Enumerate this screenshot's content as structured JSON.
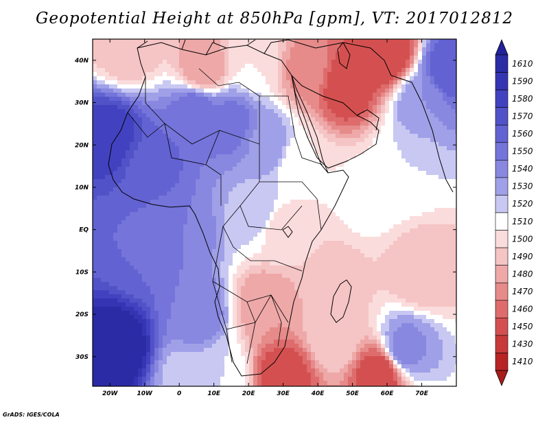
{
  "title": "Geopotential Height at 850hPa [gpm], VT: 2017012812",
  "footer": "GrADS: IGES/COLA",
  "map": {
    "lon_range": [
      -25,
      80
    ],
    "lat_range": [
      -37,
      45
    ],
    "lat_ticks": [
      {
        "lat": 40,
        "label": "40N"
      },
      {
        "lat": 30,
        "label": "30N"
      },
      {
        "lat": 20,
        "label": "20N"
      },
      {
        "lat": 10,
        "label": "10N"
      },
      {
        "lat": 0,
        "label": "EQ"
      },
      {
        "lat": -10,
        "label": "10S"
      },
      {
        "lat": -20,
        "label": "20S"
      },
      {
        "lat": -30,
        "label": "30S"
      }
    ],
    "lon_ticks": [
      {
        "lon": -20,
        "label": "20W"
      },
      {
        "lon": -10,
        "label": "10W"
      },
      {
        "lon": 0,
        "label": "0"
      },
      {
        "lon": 10,
        "label": "10E"
      },
      {
        "lon": 20,
        "label": "20E"
      },
      {
        "lon": 30,
        "label": "30E"
      },
      {
        "lon": 40,
        "label": "40E"
      },
      {
        "lon": 50,
        "label": "50E"
      },
      {
        "lon": 60,
        "label": "60E"
      },
      {
        "lon": 70,
        "label": "70E"
      }
    ]
  },
  "colorbar": {
    "levels": [
      {
        "label": "1610",
        "color": "#2b2ba6"
      },
      {
        "label": "1590",
        "color": "#3535b4"
      },
      {
        "label": "1580",
        "color": "#4242c0"
      },
      {
        "label": "1570",
        "color": "#5252c8"
      },
      {
        "label": "1560",
        "color": "#6262d2"
      },
      {
        "label": "1550",
        "color": "#7474da"
      },
      {
        "label": "1540",
        "color": "#8888e0"
      },
      {
        "label": "1530",
        "color": "#a0a0e8"
      },
      {
        "label": "1520",
        "color": "#c8c8f2"
      },
      {
        "label": "1510",
        "color": "#ffffff"
      },
      {
        "label": "1500",
        "color": "#fbdcdc"
      },
      {
        "label": "1490",
        "color": "#f5c4c4"
      },
      {
        "label": "1480",
        "color": "#eea8a8"
      },
      {
        "label": "1470",
        "color": "#e68a8a"
      },
      {
        "label": "1460",
        "color": "#de6c6c"
      },
      {
        "label": "1450",
        "color": "#d45050"
      },
      {
        "label": "1430",
        "color": "#c83a3a"
      },
      {
        "label": "1410",
        "color": "#b82424"
      }
    ],
    "top_arrow_color": "#22229a",
    "bottom_arrow_color": "#a81c1c"
  },
  "field_centers": [
    {
      "lon": -18,
      "lat": -28,
      "value": 1605
    },
    {
      "lon": -20,
      "lat": 22,
      "value": 1578
    },
    {
      "lon": -8,
      "lat": 15,
      "value": 1555
    },
    {
      "lon": 5,
      "lat": 28,
      "value": 1550
    },
    {
      "lon": 15,
      "lat": 25,
      "value": 1545
    },
    {
      "lon": 25,
      "lat": 20,
      "value": 1528
    },
    {
      "lon": 0,
      "lat": 0,
      "value": 1540
    },
    {
      "lon": -12,
      "lat": -5,
      "value": 1550
    },
    {
      "lon": 5,
      "lat": -20,
      "value": 1540
    },
    {
      "lon": 22,
      "lat": 5,
      "value": 1518
    },
    {
      "lon": 30,
      "lat": 0,
      "value": 1495
    },
    {
      "lon": 35,
      "lat": 15,
      "value": 1500
    },
    {
      "lon": 55,
      "lat": 8,
      "value": 1505
    },
    {
      "lon": 65,
      "lat": 15,
      "value": 1510
    },
    {
      "lon": 70,
      "lat": 30,
      "value": 1530
    },
    {
      "lon": 78,
      "lat": 38,
      "value": 1560
    },
    {
      "lon": 48,
      "lat": 34,
      "value": 1440
    },
    {
      "lon": 60,
      "lat": 42,
      "value": 1430
    },
    {
      "lon": 37,
      "lat": 38,
      "value": 1465
    },
    {
      "lon": 7,
      "lat": 38,
      "value": 1470
    },
    {
      "lon": -15,
      "lat": 43,
      "value": 1480
    },
    {
      "lon": 22,
      "lat": 40,
      "value": 1500
    },
    {
      "lon": 25,
      "lat": -18,
      "value": 1470
    },
    {
      "lon": 30,
      "lat": -35,
      "value": 1440
    },
    {
      "lon": 58,
      "lat": -34,
      "value": 1440
    },
    {
      "lon": 45,
      "lat": -25,
      "value": 1490
    },
    {
      "lon": 65,
      "lat": -28,
      "value": 1535
    },
    {
      "lon": 45,
      "lat": -12,
      "value": 1485
    },
    {
      "lon": 70,
      "lat": -10,
      "value": 1480
    },
    {
      "lon": 12,
      "lat": -35,
      "value": 1510
    },
    {
      "lon": 2,
      "lat": -35,
      "value": 1515
    }
  ]
}
